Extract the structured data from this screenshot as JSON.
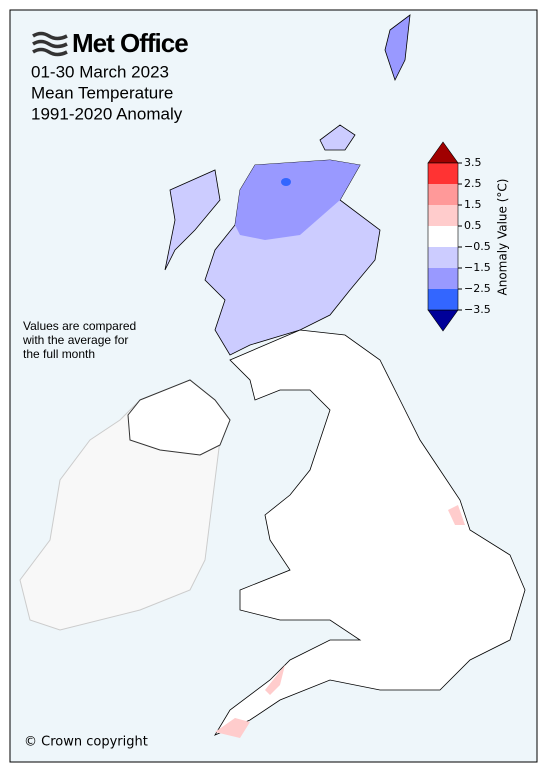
{
  "header": {
    "logo": "Met Office",
    "title_lines": [
      "01-30 March 2023",
      "Mean Temperature",
      "1991-2020 Anomaly"
    ]
  },
  "note_lines": [
    "Values are compared",
    "with the average for",
    "the full month"
  ],
  "copyright": "© Crown copyright",
  "legend": {
    "title": "Anomaly Value (°C)",
    "ticks": [
      3.5,
      2.5,
      1.5,
      0.5,
      {
        "value": -0.5,
        "label": "−0.5"
      },
      {
        "value": -1.5,
        "label": "−1.5"
      },
      {
        "value": -2.5,
        "label": "−2.5"
      },
      {
        "value": -3.5,
        "label": "−3.5"
      }
    ],
    "colors": [
      "#ff3333",
      "#ff9999",
      "#ffcccc",
      "#ffffff",
      "#ccccff",
      "#9999ff",
      "#3366ff"
    ],
    "over_color": "#a00000",
    "under_color": "#000099"
  }
}
